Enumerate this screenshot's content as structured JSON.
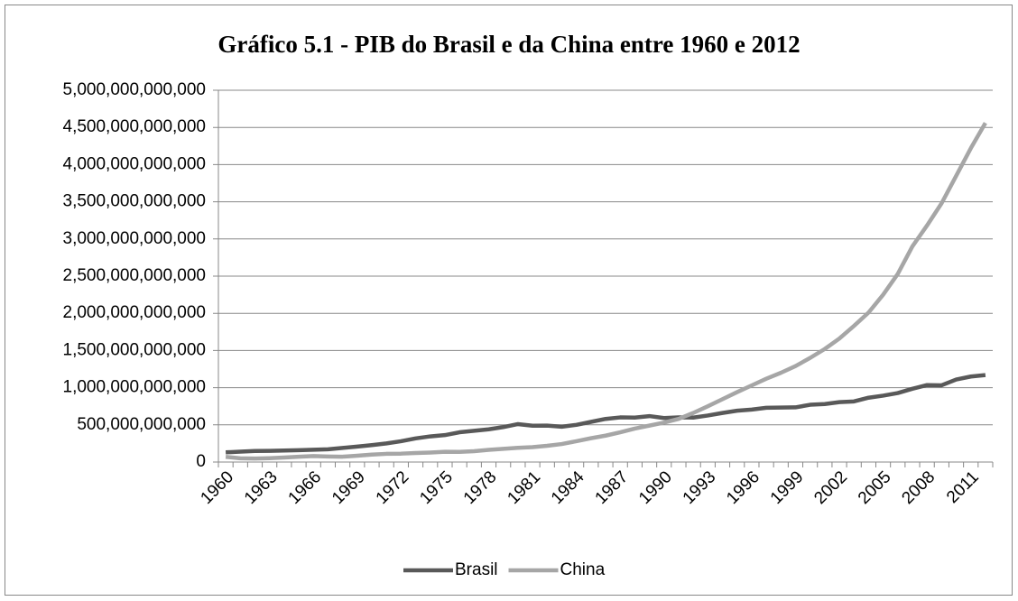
{
  "chart_data": {
    "type": "line",
    "title": "Gráfico 5.1 - PIB do Brasil e da China entre 1960 e 2012",
    "categories": [
      "1960",
      null,
      null,
      "1963",
      null,
      null,
      "1966",
      null,
      null,
      "1969",
      null,
      null,
      "1972",
      null,
      null,
      "1975",
      null,
      null,
      "1978",
      null,
      null,
      "1981",
      null,
      null,
      "1984",
      null,
      null,
      "1987",
      null,
      null,
      "1990",
      null,
      null,
      "1993",
      null,
      null,
      "1996",
      null,
      null,
      "1999",
      null,
      null,
      "2002",
      null,
      null,
      "2005",
      null,
      null,
      "2008",
      null,
      null,
      "2011",
      null
    ],
    "series": [
      {
        "name": "Brasil",
        "color": "#595959",
        "values": [
          130000000000,
          140000000000,
          148000000000,
          150000000000,
          155000000000,
          160000000000,
          165000000000,
          172000000000,
          190000000000,
          208000000000,
          228000000000,
          250000000000,
          280000000000,
          318000000000,
          345000000000,
          362000000000,
          400000000000,
          420000000000,
          440000000000,
          470000000000,
          510000000000,
          488000000000,
          490000000000,
          475000000000,
          500000000000,
          540000000000,
          580000000000,
          600000000000,
          598000000000,
          618000000000,
          592000000000,
          600000000000,
          598000000000,
          626000000000,
          660000000000,
          690000000000,
          705000000000,
          730000000000,
          732000000000,
          735000000000,
          770000000000,
          780000000000,
          805000000000,
          815000000000,
          865000000000,
          893000000000,
          928000000000,
          985000000000,
          1035000000000,
          1032000000000,
          1110000000000,
          1150000000000,
          1170000000000
        ]
      },
      {
        "name": "China",
        "color": "#a6a6a6",
        "values": [
          70000000000,
          50000000000,
          47000000000,
          52000000000,
          61000000000,
          72000000000,
          80000000000,
          75000000000,
          72000000000,
          85000000000,
          100000000000,
          110000000000,
          113000000000,
          122000000000,
          128000000000,
          138000000000,
          136000000000,
          146000000000,
          164000000000,
          177000000000,
          191000000000,
          200000000000,
          218000000000,
          242000000000,
          280000000000,
          320000000000,
          355000000000,
          400000000000,
          450000000000,
          490000000000,
          530000000000,
          580000000000,
          660000000000,
          750000000000,
          845000000000,
          940000000000,
          1030000000000,
          1120000000000,
          1200000000000,
          1290000000000,
          1400000000000,
          1520000000000,
          1660000000000,
          1830000000000,
          2010000000000,
          2250000000000,
          2530000000000,
          2900000000000,
          3180000000000,
          3480000000000,
          3850000000000,
          4220000000000,
          4560000000000
        ]
      }
    ],
    "ylim": [
      0,
      5000000000000
    ],
    "yticks": [
      0,
      {
        "value": 500000000000,
        "label": "500,000,000,000"
      },
      {
        "value": 1000000000000,
        "label": "1,000,000,000,000"
      },
      {
        "value": 1500000000000,
        "label": "1,500,000,000,000"
      },
      {
        "value": 2000000000000,
        "label": "2,000,000,000,000"
      },
      {
        "value": 2500000000000,
        "label": "2,500,000,000,000"
      },
      {
        "value": 3000000000000,
        "label": "3,000,000,000,000"
      },
      {
        "value": 3500000000000,
        "label": "3,500,000,000,000"
      },
      {
        "value": 4000000000000,
        "label": "4,000,000,000,000"
      },
      {
        "value": 4500000000000,
        "label": "4,500,000,000,000"
      },
      {
        "value": 5000000000000,
        "label": "5,000,000,000,000"
      }
    ],
    "grid": true,
    "legend": "bottom"
  }
}
